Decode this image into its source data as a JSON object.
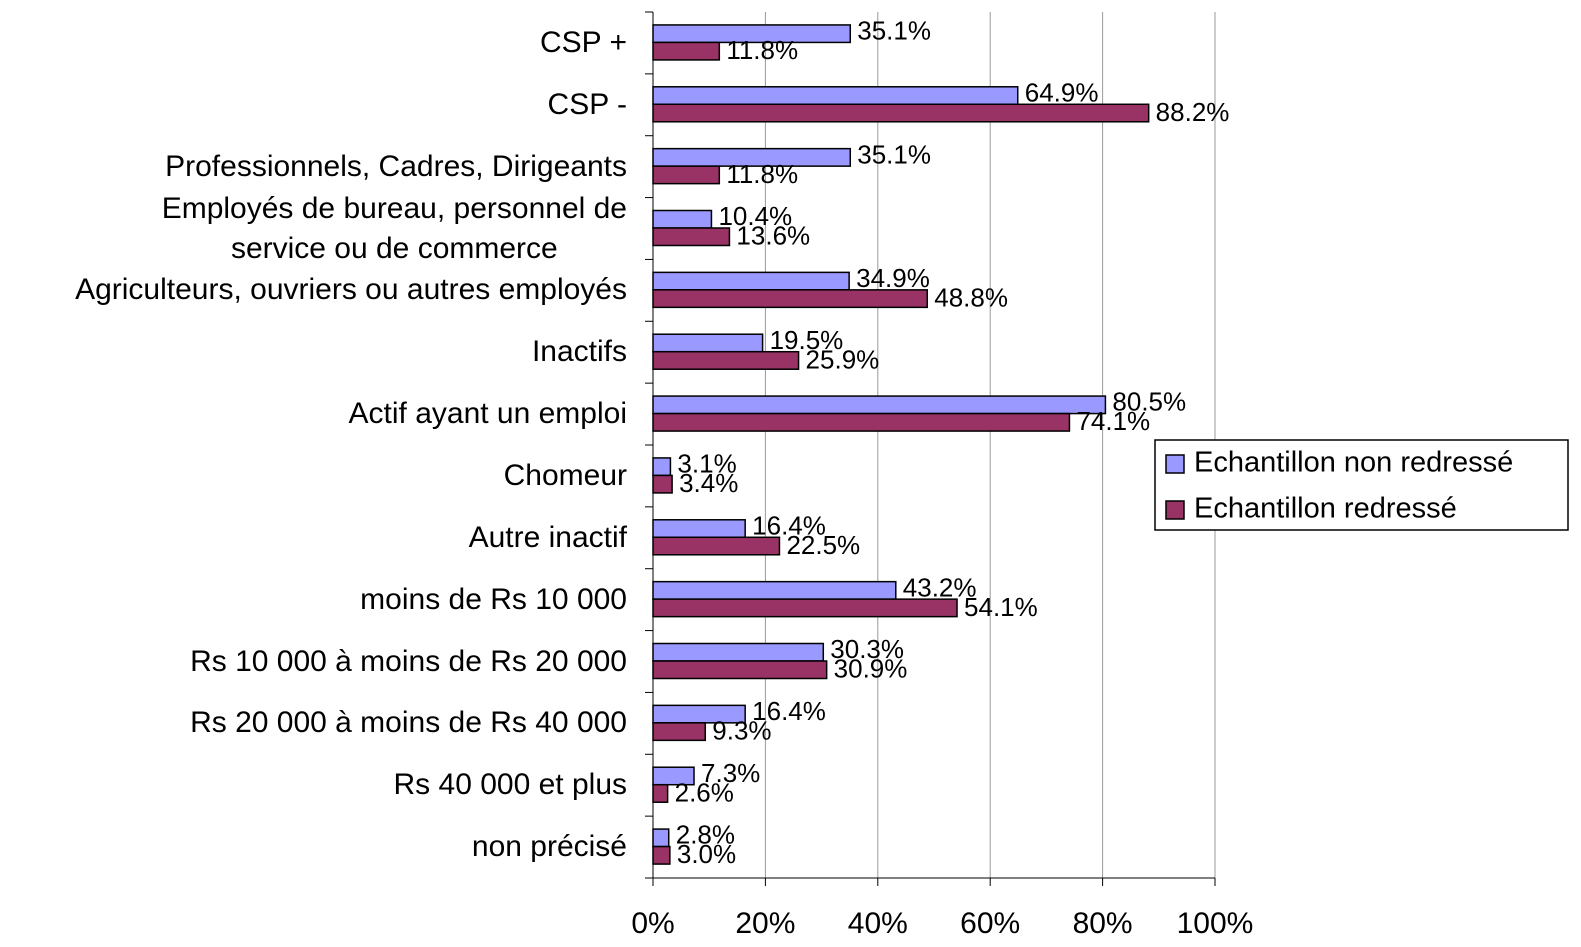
{
  "chart_data": {
    "type": "bar",
    "orientation": "horizontal",
    "categories": [
      "CSP +",
      "CSP -",
      "Professionnels, Cadres, Dirigeants",
      "Employés de bureau, personnel de\nservice ou de commerce",
      "Agriculteurs, ouvriers ou autres employés",
      "Inactifs",
      "Actif ayant un emploi",
      "Chomeur",
      "Autre inactif",
      "moins de Rs 10 000",
      "Rs 10 000 à moins de Rs 20 000",
      "Rs 20 000 à moins de Rs 40 000",
      "Rs 40 000 et plus",
      "non précisé"
    ],
    "series": [
      {
        "name": "Echantillon non redressé",
        "color": "#9999ff",
        "values": [
          35.1,
          64.9,
          35.1,
          10.4,
          34.9,
          19.5,
          80.5,
          3.1,
          16.4,
          43.2,
          30.3,
          16.4,
          7.3,
          2.8
        ],
        "value_labels": [
          "35.1%",
          "64.9%",
          "35.1%",
          "10.4%",
          "34.9%",
          "19.5%",
          "80.5%",
          "3.1%",
          "16.4%",
          "43.2%",
          "30.3%",
          "16.4%",
          "7.3%",
          "2.8%"
        ]
      },
      {
        "name": "Echantillon redressé",
        "color": "#993366",
        "values": [
          11.8,
          88.2,
          11.8,
          13.6,
          48.8,
          25.9,
          74.1,
          3.4,
          22.5,
          54.1,
          30.9,
          9.3,
          2.6,
          3.0
        ],
        "value_labels": [
          "11.8%",
          "88.2%",
          "11.8%",
          "13.6%",
          "48.8%",
          "25.9%",
          "74.1%",
          "3.4%",
          "22.5%",
          "54.1%",
          "30.9%",
          "9.3%",
          "2.6%",
          "3.0%"
        ]
      }
    ],
    "xlim": [
      0,
      100
    ],
    "xticks": [
      {
        "value": 0,
        "label": "0%"
      },
      {
        "value": 20,
        "label": "20%"
      },
      {
        "value": 40,
        "label": "40%"
      },
      {
        "value": 60,
        "label": "60%"
      },
      {
        "value": 80,
        "label": "80%"
      },
      {
        "value": 100,
        "label": "100%"
      }
    ],
    "grid": true,
    "legend": "right"
  }
}
